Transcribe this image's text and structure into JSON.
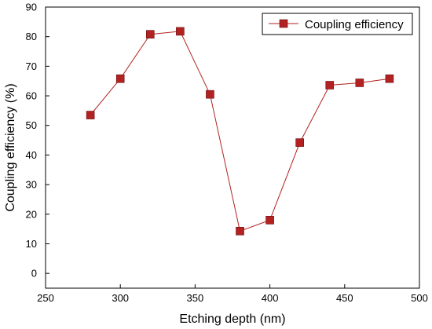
{
  "chart_data": {
    "type": "line",
    "xlabel": "Etching depth (nm)",
    "ylabel": "Coupling efficiency (%)",
    "xlim": [
      250,
      500
    ],
    "ylim": [
      -5,
      90
    ],
    "xticks": [
      250,
      300,
      350,
      400,
      450,
      500
    ],
    "yticks": [
      0,
      10,
      20,
      30,
      40,
      50,
      60,
      70,
      80,
      90
    ],
    "grid": false,
    "legend_position": "top-right",
    "series": [
      {
        "name": "Coupling efficiency",
        "color": "#b22222",
        "marker": "square",
        "x": [
          280,
          300,
          320,
          340,
          360,
          380,
          400,
          420,
          440,
          460,
          480
        ],
        "y": [
          53.5,
          65.8,
          80.8,
          81.8,
          60.5,
          14.3,
          18.0,
          44.2,
          63.6,
          64.4,
          65.8
        ]
      }
    ]
  }
}
